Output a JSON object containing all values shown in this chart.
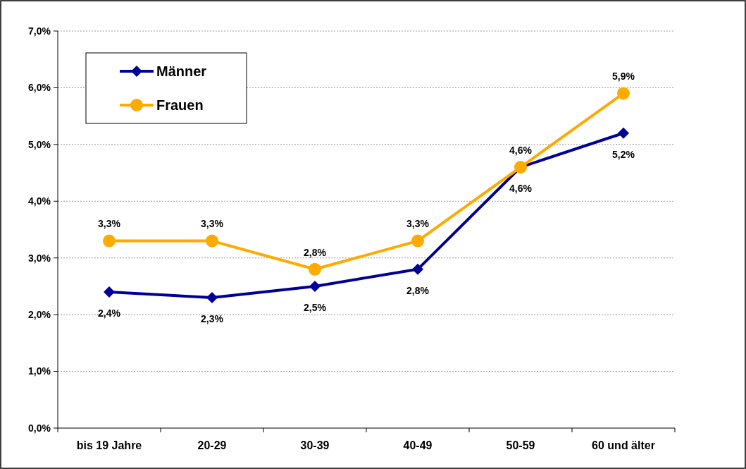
{
  "chart_data": {
    "type": "line",
    "categories": [
      "bis 19 Jahre",
      "20-29",
      "30-39",
      "40-49",
      "50-59",
      "60 und älter"
    ],
    "series": [
      {
        "name": "Männer",
        "color": "#000099",
        "marker": "diamond",
        "values": [
          2.4,
          2.3,
          2.5,
          2.8,
          4.6,
          5.2
        ],
        "value_labels": [
          "2,4%",
          "2,3%",
          "2,5%",
          "2,8%",
          "4,6%",
          "5,2%"
        ]
      },
      {
        "name": "Frauen",
        "color": "#ffaa00",
        "marker": "circle",
        "values": [
          3.3,
          3.3,
          2.8,
          3.3,
          4.6,
          5.9
        ],
        "value_labels": [
          "3,3%",
          "3,3%",
          "2,8%",
          "3,3%",
          "4,6%",
          "5,9%"
        ]
      }
    ],
    "ylim": [
      0,
      7
    ],
    "yticks": [
      {
        "value": 0,
        "label": "0,0%"
      },
      {
        "value": 1,
        "label": "1,0%"
      },
      {
        "value": 2,
        "label": "2,0%"
      },
      {
        "value": 3,
        "label": "3,0%"
      },
      {
        "value": 4,
        "label": "4,0%"
      },
      {
        "value": 5,
        "label": "5,0%"
      },
      {
        "value": 6,
        "label": "6,0%"
      },
      {
        "value": 7,
        "label": "7,0%"
      }
    ],
    "grid": "y",
    "legend": "top left"
  }
}
